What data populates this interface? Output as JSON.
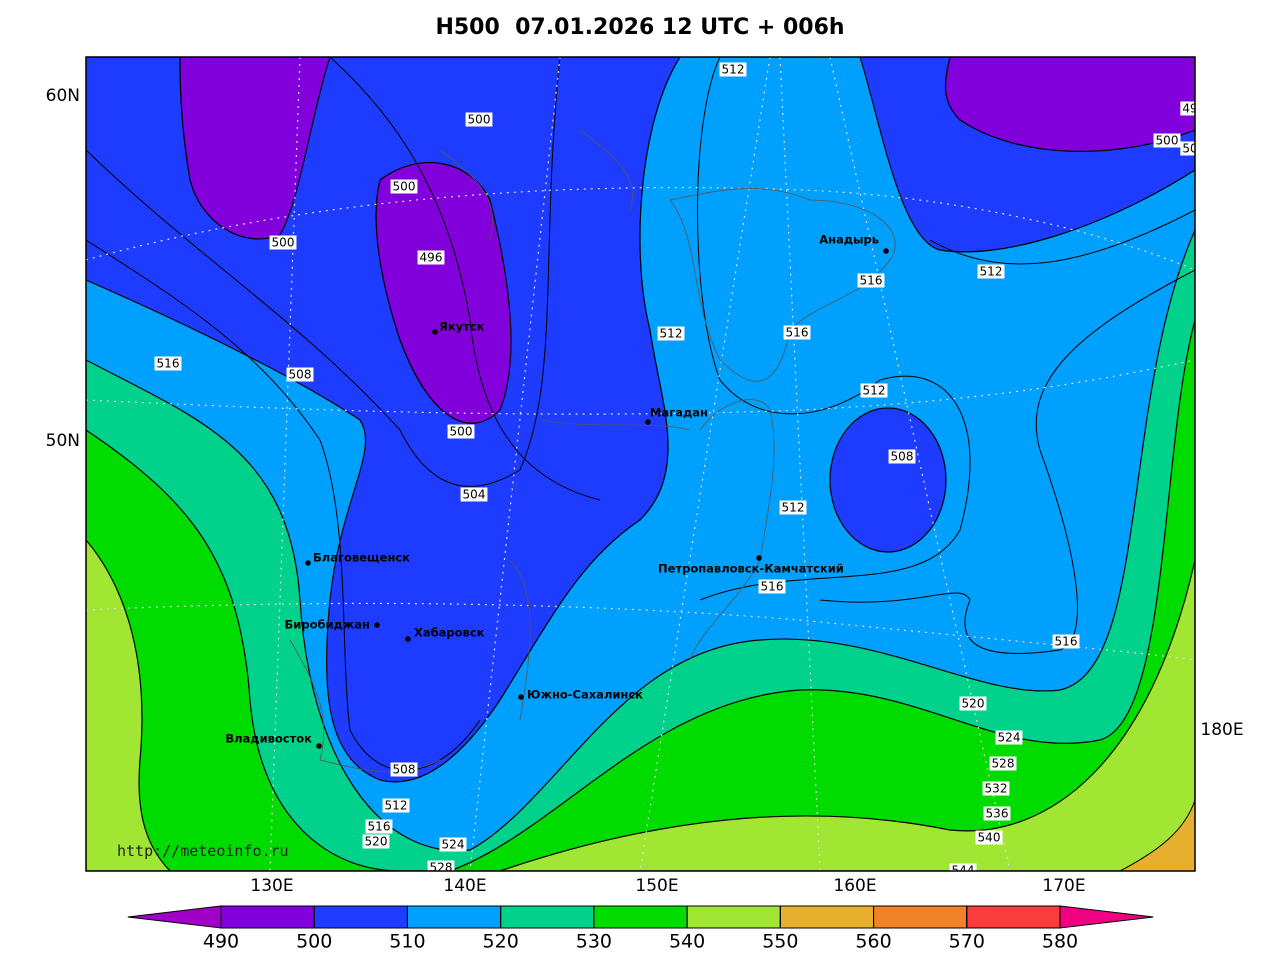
{
  "title": "H500  07.01.2026 12 UTC + 006h",
  "lat_labels": [
    "60N",
    "50N"
  ],
  "lon_labels": [
    "130E",
    "140E",
    "150E",
    "160E",
    "170E",
    "180E"
  ],
  "cities": [
    "Якутск",
    "Магадан",
    "Анадырь",
    "Благовещенск",
    "Биробиджан",
    "Хабаровск",
    "Южно-Сахалинск",
    "Петропавловск-Камчатский",
    "Владивосток"
  ],
  "contour_labels": [
    "512",
    "500",
    "500",
    "500",
    "496",
    "516",
    "508",
    "512",
    "516",
    "516",
    "512",
    "500",
    "49",
    "50",
    "512",
    "508",
    "500",
    "504",
    "512",
    "516",
    "516",
    "520",
    "524",
    "528",
    "532",
    "536",
    "540",
    "544",
    "508",
    "512",
    "516",
    "520",
    "524",
    "528"
  ],
  "credit": "http://meteoinfo.ru",
  "colorbar": {
    "ticks": [
      490,
      500,
      510,
      520,
      530,
      540,
      550,
      560,
      570,
      580
    ],
    "colors": [
      "#a000c8",
      "#8200dc",
      "#1e3cff",
      "#00a0ff",
      "#00d28c",
      "#00dc00",
      "#a0e632",
      "#e6af2d",
      "#f08228",
      "#fa3c3c",
      "#f00082"
    ]
  }
}
